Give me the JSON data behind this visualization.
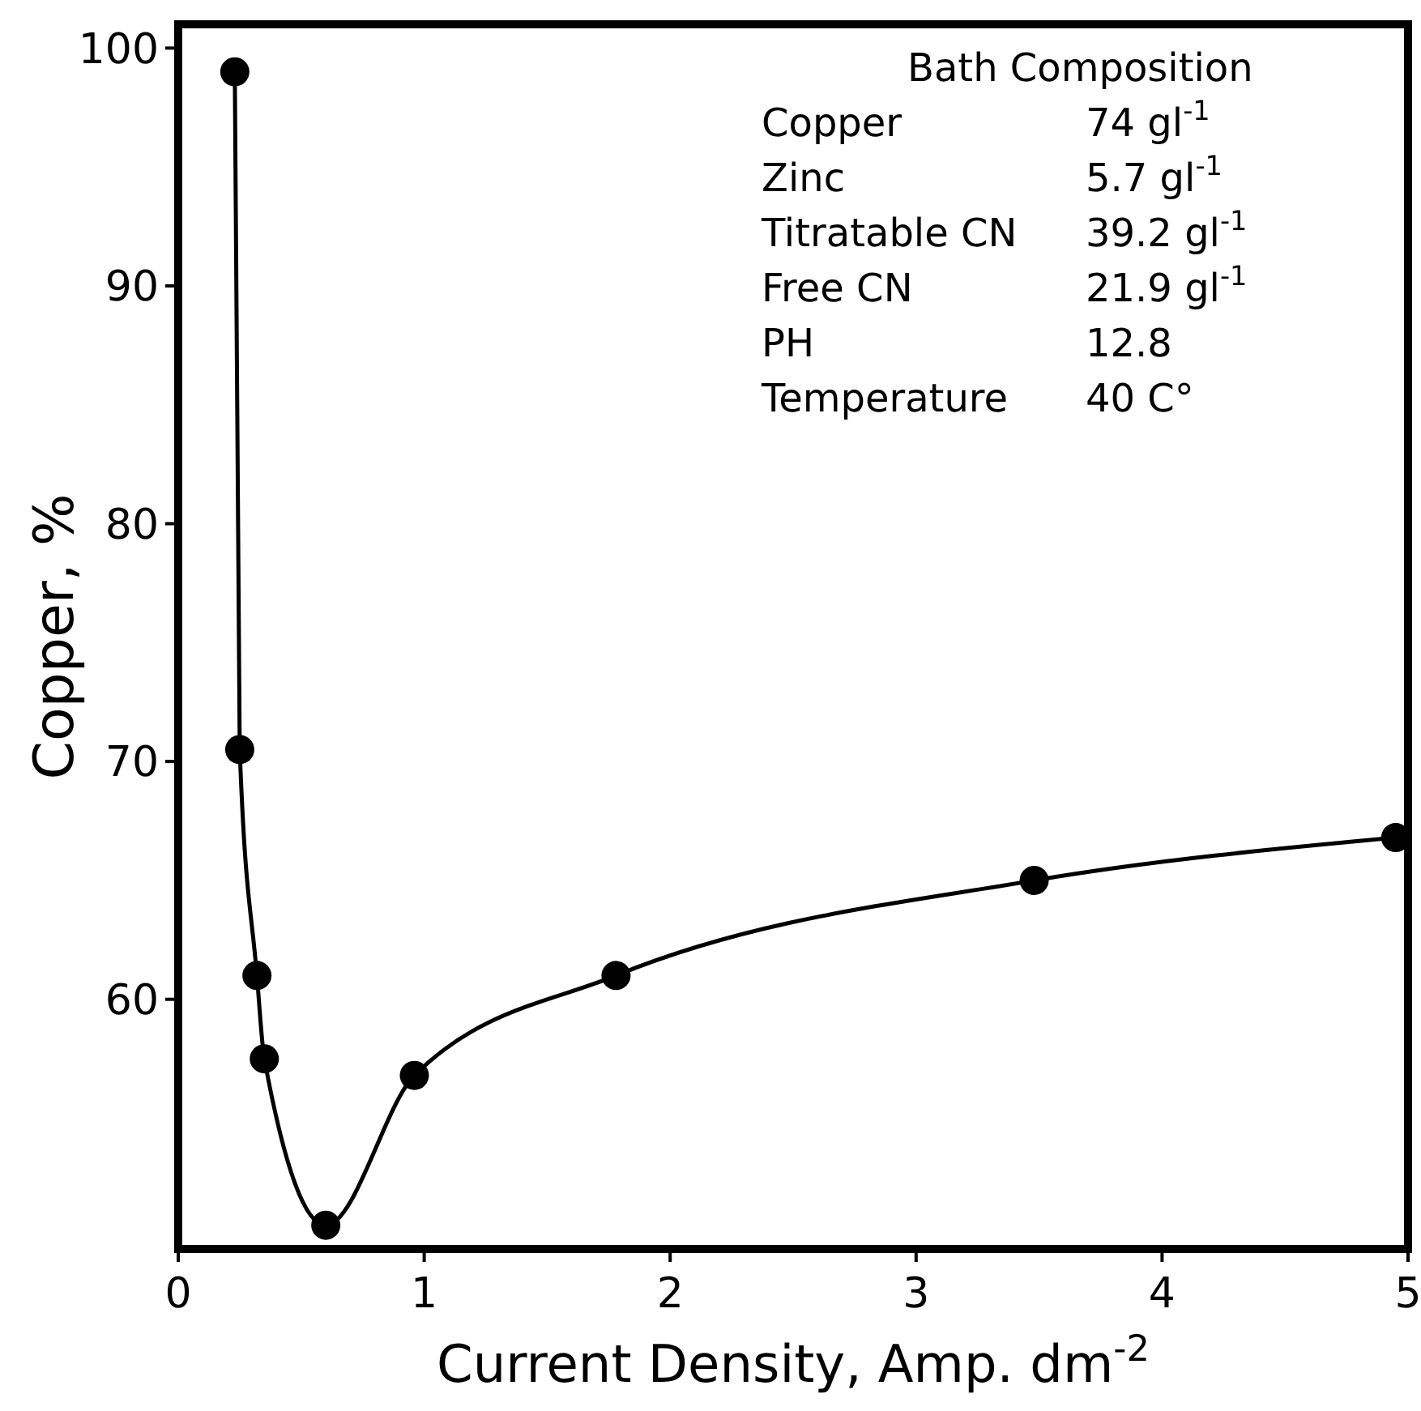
{
  "chart_data": {
    "type": "line",
    "xlabel": "Current Density, Amp. dm$^{-2}$",
    "ylabel": "Copper, %",
    "xlim": [
      0,
      5
    ],
    "xticks": [
      0,
      1,
      2,
      3,
      4,
      5
    ],
    "ylim": [
      49.5,
      101
    ],
    "yticks": [
      60,
      70,
      80,
      90,
      100
    ],
    "marker": "circle",
    "line_style": "solid",
    "grid": false,
    "series": [
      {
        "color": "#000000",
        "x": [
          0.23,
          0.25,
          0.32,
          0.35,
          0.6,
          0.96,
          1.78,
          3.48,
          4.95
        ],
        "values": [
          99,
          70.5,
          61,
          57.5,
          50.5,
          56.8,
          61,
          65,
          66.8
        ]
      }
    ],
    "annotations": [
      "Bath Composition",
      "Copper",
      "74  gl$^{-1}$",
      "Zinc",
      "5.7  gl$^{-1}$",
      "Titratable CN",
      "39.2 gl$^{-1}$",
      "Free CN",
      "21.9 gl$^{-1}$",
      "PH",
      "12.8",
      "Temperature",
      "40 C°"
    ]
  }
}
